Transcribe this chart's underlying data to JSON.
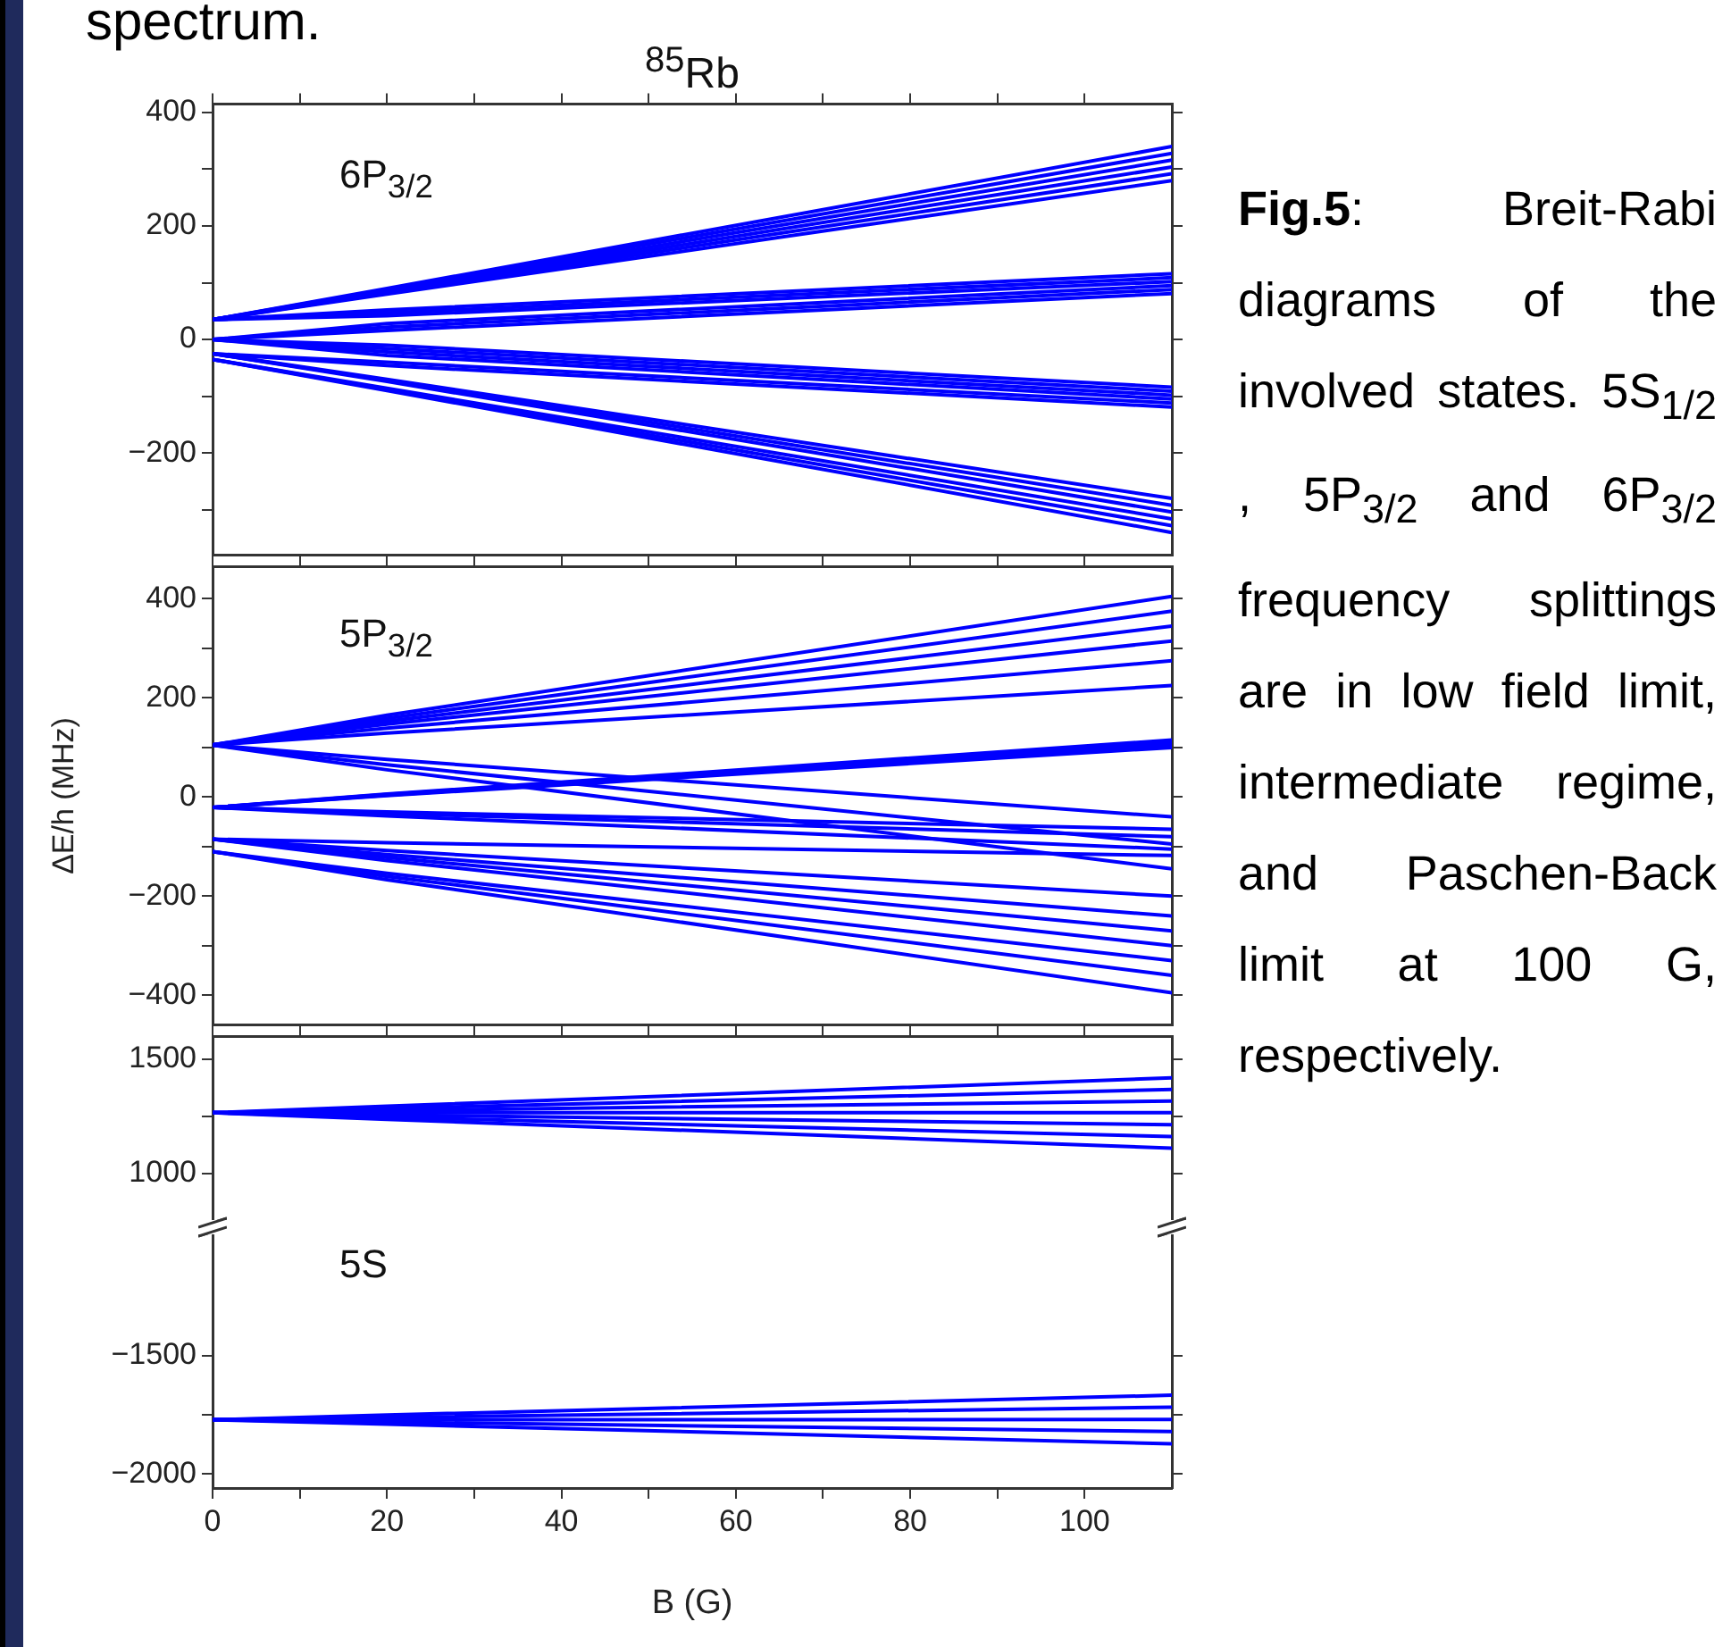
{
  "chart_data": [
    {
      "type": "line",
      "title": "$^{85}$Rb",
      "annotations": [
        "6P$_{3/2}$"
      ],
      "tick_labels": "y",
      "legend": false,
      "marker": "none",
      "line_style": "solid",
      "xlim": [
        0,
        110
      ],
      "xticks": [
        0,
        {
          "value": 10,
          "label": null
        },
        20,
        {
          "value": 30,
          "label": null
        },
        40,
        {
          "value": 50,
          "label": null
        },
        60,
        {
          "value": 70,
          "label": null
        },
        80,
        {
          "value": 90,
          "label": null
        },
        100
      ],
      "ylim": [
        -380,
        415
      ],
      "yticks": [
        {
          "value": -300,
          "label": null
        },
        {
          "value": -200,
          "label": "−200"
        },
        {
          "value": -100,
          "label": null
        },
        0,
        {
          "value": 100,
          "label": null
        },
        200,
        {
          "value": 300,
          "label": null
        },
        400
      ],
      "x": [
        0,
        20,
        110
      ],
      "series": [
        {
          "color": "#0000ff",
          "values": [
            35,
            90,
            340
          ]
        },
        {
          "color": "#0000ff",
          "values": [
            35,
            88,
            328
          ]
        },
        {
          "color": "#0000ff",
          "values": [
            35,
            86,
            316
          ]
        },
        {
          "color": "#0000ff",
          "values": [
            35,
            84,
            304
          ]
        },
        {
          "color": "#0000ff",
          "values": [
            35,
            82,
            292
          ]
        },
        {
          "color": "#0000ff",
          "values": [
            35,
            80,
            280
          ]
        },
        {
          "color": "#0000ff",
          "values": [
            35,
            52,
            116
          ]
        },
        {
          "color": "#0000ff",
          "values": [
            35,
            47,
            109
          ]
        },
        {
          "color": "#0000ff",
          "values": [
            35,
            42,
            102
          ]
        },
        {
          "color": "#0000ff",
          "values": [
            0,
            28,
            95
          ]
        },
        {
          "color": "#0000ff",
          "values": [
            0,
            22,
            88
          ]
        },
        {
          "color": "#0000ff",
          "values": [
            0,
            16,
            81
          ]
        },
        {
          "color": "#0000ff",
          "values": [
            0,
            -10,
            -84
          ]
        },
        {
          "color": "#0000ff",
          "values": [
            0,
            -16,
            -91
          ]
        },
        {
          "color": "#0000ff",
          "values": [
            0,
            -22,
            -98
          ]
        },
        {
          "color": "#0000ff",
          "values": [
            0,
            -28,
            -105
          ]
        },
        {
          "color": "#0000ff",
          "values": [
            -25,
            -40,
            -112
          ]
        },
        {
          "color": "#0000ff",
          "values": [
            -25,
            -46,
            -119
          ]
        },
        {
          "color": "#0000ff",
          "values": [
            -25,
            -70,
            -280
          ]
        },
        {
          "color": "#0000ff",
          "values": [
            -25,
            -72,
            -292
          ]
        },
        {
          "color": "#0000ff",
          "values": [
            -25,
            -74,
            -304
          ]
        },
        {
          "color": "#0000ff",
          "values": [
            -35,
            -86,
            -316
          ]
        },
        {
          "color": "#0000ff",
          "values": [
            -35,
            -88,
            -328
          ]
        },
        {
          "color": "#0000ff",
          "values": [
            -35,
            -90,
            -340
          ]
        }
      ]
    },
    {
      "type": "line",
      "ylabel": "ΔE/h (MHz)",
      "annotations": [
        "5P$_{3/2}$"
      ],
      "tick_labels": "y",
      "legend": false,
      "marker": "none",
      "line_style": "solid",
      "xlim": [
        0,
        110
      ],
      "xticks": [
        0,
        {
          "value": 10,
          "label": null
        },
        20,
        {
          "value": 30,
          "label": null
        },
        40,
        {
          "value": 50,
          "label": null
        },
        60,
        {
          "value": 70,
          "label": null
        },
        80,
        {
          "value": 90,
          "label": null
        },
        100
      ],
      "ylim": [
        -460,
        465
      ],
      "yticks": [
        {
          "value": -400,
          "label": "−400"
        },
        {
          "value": -300,
          "label": null
        },
        {
          "value": -200,
          "label": "−200"
        },
        {
          "value": -100,
          "label": null
        },
        0,
        {
          "value": 100,
          "label": null
        },
        200,
        {
          "value": 300,
          "label": null
        },
        400
      ],
      "x": [
        0,
        20,
        110
      ],
      "series": [
        {
          "color": "#0000ff",
          "values": [
            105,
            165,
            405
          ]
        },
        {
          "color": "#0000ff",
          "values": [
            105,
            159,
            375
          ]
        },
        {
          "color": "#0000ff",
          "values": [
            105,
            153,
            345
          ]
        },
        {
          "color": "#0000ff",
          "values": [
            105,
            147,
            315
          ]
        },
        {
          "color": "#0000ff",
          "values": [
            105,
            139,
            275
          ]
        },
        {
          "color": "#0000ff",
          "values": [
            105,
            129,
            225
          ]
        },
        {
          "color": "#0000ff",
          "values": [
            105,
            76,
            -40
          ]
        },
        {
          "color": "#0000ff",
          "values": [
            105,
            65,
            -95
          ]
        },
        {
          "color": "#0000ff",
          "values": [
            105,
            55,
            -145
          ]
        },
        {
          "color": "#0000ff",
          "values": [
            -21,
            6,
            115
          ]
        },
        {
          "color": "#0000ff",
          "values": [
            -21,
            5,
            110
          ]
        },
        {
          "color": "#0000ff",
          "values": [
            -21,
            4,
            105
          ]
        },
        {
          "color": "#0000ff",
          "values": [
            -21,
            3,
            100
          ]
        },
        {
          "color": "#0000ff",
          "values": [
            -21,
            -30,
            -65
          ]
        },
        {
          "color": "#0000ff",
          "values": [
            -21,
            -33,
            -80
          ]
        },
        {
          "color": "#0000ff",
          "values": [
            -21,
            -38,
            -105
          ]
        },
        {
          "color": "#0000ff",
          "values": [
            -85,
            -92,
            -118
          ]
        },
        {
          "color": "#0000ff",
          "values": [
            -85,
            -108,
            -200
          ]
        },
        {
          "color": "#0000ff",
          "values": [
            -85,
            -116,
            -240
          ]
        },
        {
          "color": "#0000ff",
          "values": [
            -85,
            -122,
            -270
          ]
        },
        {
          "color": "#0000ff",
          "values": [
            -85,
            -128,
            -300
          ]
        },
        {
          "color": "#0000ff",
          "values": [
            -110,
            -154,
            -330
          ]
        },
        {
          "color": "#0000ff",
          "values": [
            -110,
            -160,
            -360
          ]
        },
        {
          "color": "#0000ff",
          "values": [
            -110,
            -167,
            -395
          ]
        }
      ]
    },
    {
      "type": "line",
      "tick_labels": "y",
      "legend": false,
      "marker": "none",
      "line_style": "solid",
      "xlim": [
        0,
        110
      ],
      "xticks": [
        0,
        {
          "value": 10,
          "label": null
        },
        20,
        {
          "value": 30,
          "label": null
        },
        40,
        {
          "value": 50,
          "label": null
        },
        60,
        {
          "value": 70,
          "label": null
        },
        80,
        {
          "value": 90,
          "label": null
        },
        100
      ],
      "ylim": [
        790,
        1600
      ],
      "yticks": [
        1000,
        {
          "value": 1250,
          "label": null
        },
        1500
      ],
      "x": [
        0,
        20,
        110
      ],
      "series": [
        {
          "color": "#0000ff",
          "values": [
            1266,
            1295,
            1419
          ]
        },
        {
          "color": "#0000ff",
          "values": [
            1266,
            1285,
            1368
          ]
        },
        {
          "color": "#0000ff",
          "values": [
            1266,
            1276,
            1317
          ]
        },
        {
          "color": "#0000ff",
          "values": [
            1266,
            1266,
            1266
          ]
        },
        {
          "color": "#0000ff",
          "values": [
            1266,
            1256,
            1214
          ]
        },
        {
          "color": "#0000ff",
          "values": [
            1266,
            1246,
            1162
          ]
        },
        {
          "color": "#0000ff",
          "values": [
            1266,
            1237,
            1111
          ]
        }
      ]
    },
    {
      "type": "line",
      "xlabel": "B (G)",
      "annotations": [
        "5S"
      ],
      "legend": false,
      "marker": "none",
      "line_style": "solid",
      "xlim": [
        0,
        110
      ],
      "xticks": [
        0,
        {
          "value": 10,
          "label": null
        },
        20,
        {
          "value": 30,
          "label": null
        },
        40,
        {
          "value": 50,
          "label": null
        },
        60,
        {
          "value": 70,
          "label": null
        },
        80,
        {
          "value": 90,
          "label": null
        },
        100
      ],
      "ylim": [
        -2060,
        -980
      ],
      "yticks": [
        {
          "value": -2000,
          "label": "−2000"
        },
        {
          "value": -1750,
          "label": null
        },
        {
          "value": -1500,
          "label": "−1500"
        }
      ],
      "x": [
        0,
        20,
        110
      ],
      "series": [
        {
          "color": "#0000ff",
          "values": [
            -1771,
            -1751,
            -1667
          ]
        },
        {
          "color": "#0000ff",
          "values": [
            -1771,
            -1761,
            -1718
          ]
        },
        {
          "color": "#0000ff",
          "values": [
            -1771,
            -1771,
            -1770
          ]
        },
        {
          "color": "#0000ff",
          "values": [
            -1771,
            -1781,
            -1821
          ]
        },
        {
          "color": "#0000ff",
          "values": [
            -1771,
            -1790,
            -1873
          ]
        }
      ]
    },
    {
      "type": "other",
      "annotations": [
        "spectrum.",
        "Fig.5",
        ": Breit-Rabi diagrams of the involved states. 5S$_{1/2}$ , 5P$_{3/2}$ and 6P$_{3/2}$ frequency splittings are in low field limit, intermediate regime, and Paschen-Back limit at 100 G, respectively."
      ]
    }
  ]
}
